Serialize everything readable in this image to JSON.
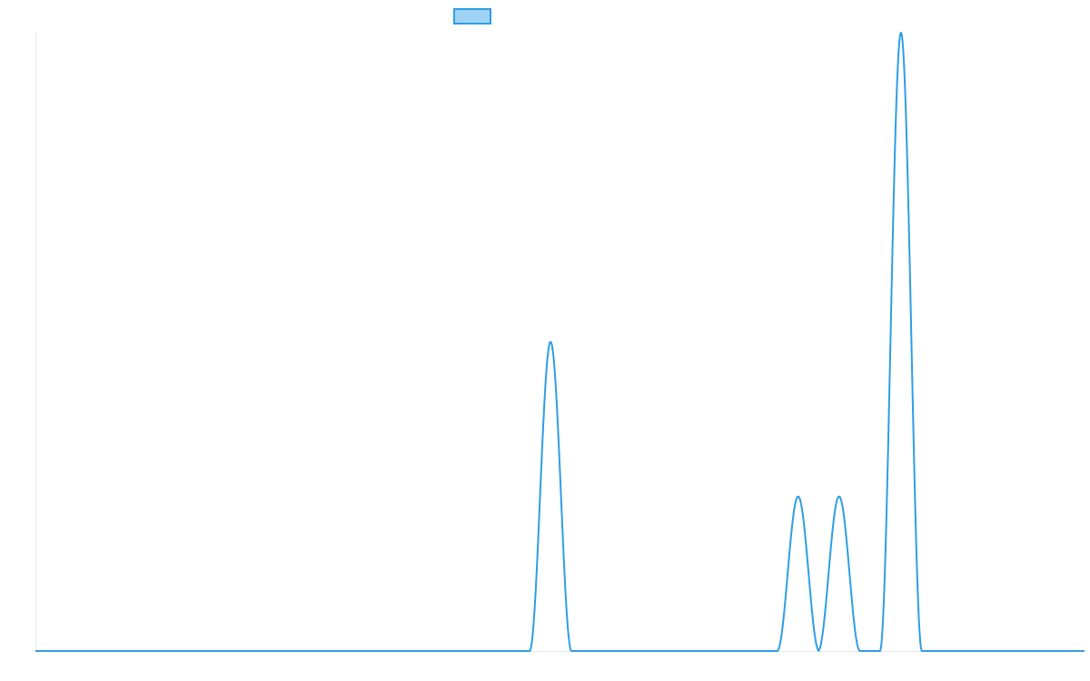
{
  "chart_data": {
    "type": "area",
    "title": "",
    "xlabel": "",
    "ylabel": "",
    "grid": false,
    "legend": {
      "placement": "top-center",
      "entries": [
        {
          "label": "",
          "swatch_fill": "#9fd3f5",
          "swatch_stroke": "#2f9ee4"
        }
      ]
    },
    "xlim": [
      0,
      1000
    ],
    "ylim": [
      0,
      100
    ],
    "series": [
      {
        "color": "#2f9ee4",
        "peaks": [
          {
            "center": 491,
            "height": 50,
            "half_width": 20
          },
          {
            "center": 727,
            "height": 25,
            "half_width": 20
          },
          {
            "center": 766,
            "height": 25,
            "half_width": 20
          },
          {
            "center": 825,
            "height": 100,
            "half_width": 20
          }
        ]
      }
    ]
  }
}
